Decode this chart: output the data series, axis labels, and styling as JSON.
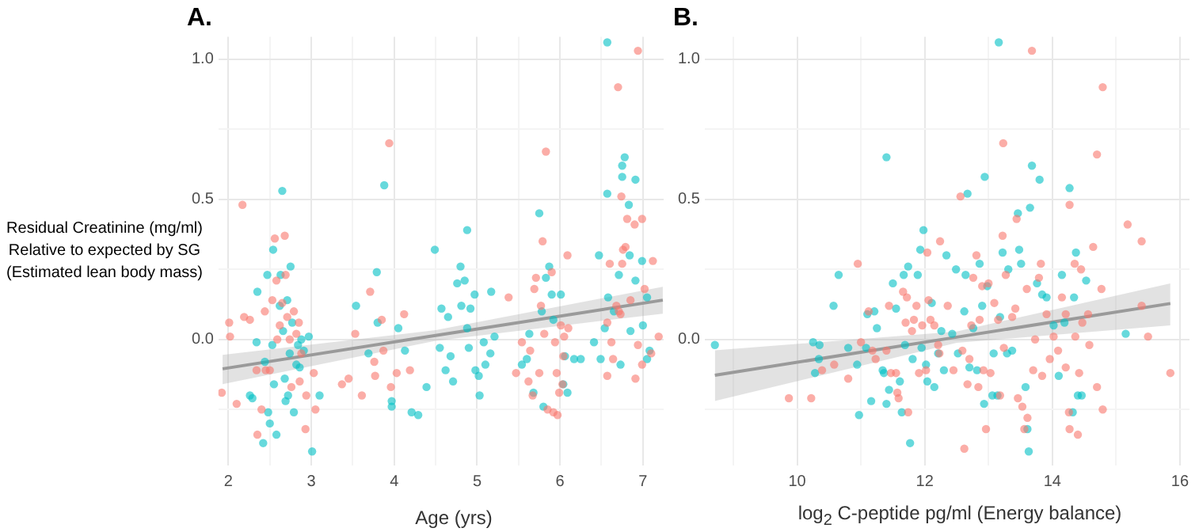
{
  "chart_data": [
    {
      "type": "scatter",
      "title": "A.",
      "xlabel": "Age (yrs)",
      "ylabel": "Residual Creatinine (mg/ml)\nRelative to expected by SG\n(Estimated lean body mass)",
      "xlim": [
        1.88,
        7.25
      ],
      "xticks": [
        2,
        {
          "value": 2.5,
          "label": null
        },
        3,
        {
          "value": 3.5,
          "label": null
        },
        4,
        {
          "value": 4.5,
          "label": null
        },
        5,
        {
          "value": 5.5,
          "label": null
        },
        6,
        {
          "value": 6.5,
          "label": null
        },
        7
      ],
      "ylim": [
        -0.45,
        1.08
      ],
      "yticks": [
        {
          "value": -0.25,
          "label": null
        },
        {
          "value": 0,
          "label": "0.0"
        },
        {
          "value": 0.25,
          "label": null
        },
        {
          "value": 0.5,
          "label": "0.5"
        },
        {
          "value": 0.75,
          "label": null
        },
        {
          "value": 1,
          "label": "1.0"
        }
      ],
      "grid": true,
      "series": [
        {
          "marker": "circle",
          "color": "#f8766d",
          "x": [
            1.92,
            2.01,
            2.02,
            2.1,
            2.17,
            2.19,
            2.26,
            2.34,
            2.35,
            2.4,
            2.44,
            2.45,
            2.5,
            2.53,
            2.56,
            2.58,
            2.59,
            2.62,
            2.65,
            2.68,
            2.69,
            2.71,
            2.74,
            2.76,
            2.79,
            2.82,
            2.85,
            2.86,
            2.88,
            2.93,
            2.94,
            3.03,
            3.05,
            3.37,
            3.45,
            3.53,
            3.61,
            3.71,
            3.76,
            3.77,
            3.85,
            3.87,
            3.94,
            3.96,
            4.03,
            4.12,
            4.19,
            5.38,
            5.47,
            5.54,
            5.62,
            5.64,
            5.67,
            5.69,
            5.71,
            5.75,
            5.77,
            5.79,
            5.81,
            5.83,
            5.85,
            5.9,
            5.92,
            5.94,
            5.96,
            5.97,
            5.99,
            6.01,
            6.03,
            6.04,
            6.05,
            6.09,
            6.1,
            6.94,
            6.7,
            6.74,
            6.81,
            6.9,
            6.99,
            6.79,
            6.76,
            6.6,
            6.75,
            7.12,
            7.02,
            6.85,
            6.68,
            6.73,
            6.57,
            6.62,
            6.64,
            6.94,
            6.99,
            7.1,
            6.57,
            6.91,
            7.19,
            6.71
          ],
          "values": [
            -0.19,
            0.06,
            0.01,
            -0.23,
            0.48,
            0.08,
            0.07,
            -0.11,
            -0.34,
            -0.25,
            0.1,
            -0.11,
            -0.11,
            0.14,
            0.36,
            0.21,
            0.0,
            0.05,
            0.13,
            0.37,
            0.23,
            0.08,
            0.0,
            -0.17,
            0.1,
            0.02,
            0.06,
            -0.15,
            -0.05,
            -0.32,
            -0.2,
            -0.12,
            -0.25,
            -0.16,
            -0.14,
            0.02,
            -0.2,
            0.17,
            -0.08,
            -0.13,
            0.07,
            -0.04,
            0.7,
            -0.17,
            -0.12,
            0.09,
            -0.11,
            0.15,
            -0.12,
            -0.01,
            -0.15,
            -0.04,
            -0.2,
            0.18,
            0.22,
            -0.12,
            0.12,
            0.35,
            0.02,
            0.67,
            -0.25,
            0.24,
            -0.26,
            -0.01,
            -0.12,
            -0.27,
            -0.19,
            0.05,
            -0.16,
            -0.06,
            0.01,
            0.3,
            0.04,
            1.03,
            0.9,
            0.51,
            0.43,
            0.41,
            0.43,
            0.33,
            0.32,
            0.27,
            0.27,
            0.28,
            0.18,
            0.14,
            0.12,
            0.09,
            0.06,
            -0.01,
            -0.07,
            -0.02,
            -0.09,
            -0.05,
            -0.13,
            -0.14,
            0.01,
            0.1
          ]
        },
        {
          "marker": "circle",
          "color": "#00bfc4",
          "x": [
            2.26,
            2.29,
            2.34,
            2.35,
            2.42,
            2.44,
            2.47,
            2.48,
            2.5,
            2.53,
            2.54,
            2.55,
            2.58,
            2.62,
            2.63,
            2.65,
            2.66,
            2.68,
            2.69,
            2.71,
            2.72,
            2.74,
            2.75,
            2.77,
            2.79,
            2.82,
            2.84,
            2.86,
            2.88,
            2.91,
            2.97,
            3.01,
            3.1,
            3.54,
            3.69,
            3.79,
            3.8,
            3.88,
            3.97,
            3.97,
            4.05,
            4.13,
            4.21,
            4.29,
            4.39,
            4.49,
            4.55,
            4.57,
            4.62,
            4.65,
            4.68,
            4.71,
            4.76,
            4.8,
            4.81,
            4.85,
            4.88,
            4.88,
            4.9,
            4.92,
            4.97,
            4.98,
            5.02,
            5.03,
            5.08,
            5.1,
            5.16,
            5.17,
            5.21,
            5.54,
            5.6,
            5.63,
            5.68,
            5.75,
            5.78,
            5.8,
            5.83,
            5.87,
            5.9,
            5.92,
            6.01,
            6.04,
            6.06,
            6.09,
            6.17,
            6.25,
            6.57,
            6.57,
            6.78,
            6.75,
            6.75,
            6.91,
            6.83,
            6.47,
            6.84,
            6.91,
            6.99,
            7.05,
            6.71,
            6.58,
            6.65,
            6.54,
            6.49,
            6.73,
            6.85,
            7.0,
            7.08,
            7.05,
            6.41
          ],
          "values": [
            -0.2,
            -0.21,
            -0.01,
            0.17,
            -0.37,
            -0.08,
            0.23,
            -0.26,
            -0.3,
            -0.02,
            0.32,
            -0.16,
            -0.34,
            0.12,
            0.23,
            0.53,
            0.03,
            -0.14,
            -0.22,
            0.14,
            -0.2,
            -0.05,
            0.26,
            0.06,
            -0.26,
            -0.09,
            -0.02,
            -0.1,
            0.0,
            -0.04,
            0.01,
            -0.4,
            -0.2,
            0.12,
            -0.05,
            0.24,
            0.06,
            0.55,
            -0.22,
            -0.24,
            0.04,
            -0.04,
            -0.26,
            -0.27,
            -0.17,
            0.32,
            -0.03,
            0.11,
            -0.11,
            0.08,
            -0.06,
            -0.15,
            0.2,
            0.26,
            0.12,
            0.21,
            0.39,
            0.04,
            -0.03,
            0.11,
            0.16,
            -0.11,
            -0.13,
            -0.2,
            -0.01,
            -0.09,
            -0.05,
            0.17,
            0.01,
            -0.09,
            -0.07,
            0.02,
            -0.19,
            0.45,
            0.1,
            -0.24,
            0.22,
            0.26,
            0.16,
            0.07,
            0.16,
            -0.16,
            -0.06,
            -0.19,
            -0.07,
            -0.07,
            1.06,
            0.52,
            0.65,
            0.62,
            0.58,
            0.57,
            0.48,
            0.3,
            0.3,
            0.21,
            0.28,
            0.15,
            0.23,
            0.15,
            0.1,
            0.04,
            -0.07,
            -0.09,
            0.03,
            0.05,
            -0.04,
            -0.07,
            -0.01
          ]
        },
        {
          "type": "line",
          "marker": "none",
          "color": "#999999",
          "x": [
            1.93,
            4.5,
            7.24
          ],
          "values": [
            -0.105,
            0.014,
            0.14
          ],
          "lower": [
            -0.16,
            -0.005,
            0.092
          ],
          "upper": [
            -0.055,
            0.033,
            0.188
          ]
        }
      ]
    },
    {
      "type": "scatter",
      "title": "B.",
      "xlabel": "log$_{2}$ C-peptide pg/ml (Energy balance)",
      "xlim": [
        8.55,
        16.15
      ],
      "xticks": [
        {
          "value": 9,
          "label": null
        },
        10,
        {
          "value": 11,
          "label": null
        },
        12,
        {
          "value": 13,
          "label": null
        },
        14,
        {
          "value": 15,
          "label": null
        },
        16
      ],
      "ylim": [
        -0.45,
        1.08
      ],
      "yticks": [
        {
          "value": -0.25,
          "label": null
        },
        {
          "value": 0,
          "label": "0.0"
        },
        {
          "value": 0.25,
          "label": null
        },
        {
          "value": 0.5,
          "label": "0.5"
        },
        {
          "value": 0.75,
          "label": null
        },
        {
          "value": 1,
          "label": "1.0"
        }
      ],
      "grid": true,
      "series": [
        {
          "marker": "circle",
          "color": "#f8766d",
          "x": [
            9.87,
            10.22,
            10.39,
            10.58,
            10.8,
            10.95,
            11.0,
            11.12,
            11.18,
            11.23,
            11.4,
            11.44,
            11.47,
            11.55,
            11.57,
            11.59,
            11.66,
            11.7,
            11.72,
            11.74,
            11.8,
            11.83,
            11.87,
            11.91,
            11.96,
            12.02,
            12.04,
            12.06,
            12.09,
            12.15,
            12.21,
            12.23,
            12.24,
            12.36,
            12.45,
            12.56,
            12.59,
            12.62,
            12.67,
            12.7,
            12.73,
            12.76,
            12.81,
            12.84,
            12.86,
            12.9,
            12.92,
            12.96,
            13.0,
            13.03,
            13.09,
            13.15,
            13.18,
            13.22,
            13.23,
            13.24,
            13.27,
            13.37,
            13.42,
            13.44,
            13.46,
            13.53,
            13.56,
            13.6,
            13.61,
            13.68,
            13.7,
            13.73,
            13.79,
            13.82,
            13.84,
            13.91,
            13.96,
            14.02,
            14.09,
            14.15,
            14.21,
            14.21,
            14.27,
            14.27,
            14.26,
            14.36,
            14.35,
            14.4,
            14.42,
            14.45,
            14.47,
            14.56,
            14.58,
            14.64,
            14.7,
            14.7,
            14.77,
            14.79,
            14.79,
            15.18,
            15.4,
            15.4,
            15.5,
            15.85
          ],
          "values": [
            -0.21,
            -0.21,
            -0.11,
            -0.09,
            -0.14,
            0.27,
            -0.01,
            0.1,
            -0.04,
            -0.07,
            -0.04,
            0.12,
            -0.12,
            -0.12,
            -0.19,
            -0.21,
            0.17,
            0.06,
            0.15,
            -0.26,
            0.03,
            0.07,
            0.12,
            -0.12,
            0.05,
            -0.11,
            0.31,
            0.14,
            0.07,
            0.05,
            -0.02,
            -0.05,
            0.35,
            0.12,
            -0.11,
            0.51,
            -0.04,
            -0.39,
            -0.16,
            -0.07,
            0.05,
            0.22,
            0.3,
            -0.17,
            0.07,
            0.19,
            -0.11,
            -0.32,
            0.2,
            -0.12,
            0.13,
            0.07,
            -0.2,
            0.37,
            0.7,
            -0.03,
            0.23,
            0.08,
            0.11,
            0.43,
            -0.21,
            -0.24,
            -0.32,
            0.18,
            -0.28,
            1.03,
            -0.11,
            0.0,
            0.22,
            0.27,
            -0.13,
            0.09,
            -0.07,
            0.01,
            -0.04,
            0.15,
            -0.1,
            0.09,
            0.48,
            -0.32,
            -0.26,
            0.01,
            0.27,
            -0.34,
            -0.12,
            0.25,
            0.06,
            0.09,
            -0.02,
            0.33,
            0.66,
            -0.17,
            0.18,
            -0.25,
            0.9,
            0.41,
            0.35,
            0.12,
            0.01,
            -0.12
          ]
        },
        {
          "marker": "circle",
          "color": "#00bfc4",
          "x": [
            8.71,
            10.25,
            10.35,
            10.28,
            10.34,
            10.57,
            10.65,
            10.8,
            10.94,
            10.97,
            11.08,
            11.1,
            11.16,
            11.21,
            11.25,
            11.34,
            11.36,
            11.4,
            11.4,
            11.44,
            11.5,
            11.55,
            11.61,
            11.64,
            11.67,
            11.69,
            11.74,
            11.77,
            11.81,
            11.89,
            11.93,
            11.95,
            11.98,
            12.02,
            12.04,
            12.11,
            12.15,
            12.21,
            12.26,
            12.3,
            12.34,
            12.43,
            12.49,
            12.52,
            12.62,
            12.64,
            12.67,
            12.7,
            12.76,
            12.82,
            12.86,
            12.9,
            12.93,
            12.94,
            12.98,
            13.06,
            13.08,
            13.14,
            13.16,
            13.18,
            13.22,
            13.29,
            13.31,
            13.37,
            13.46,
            13.48,
            13.51,
            13.58,
            13.61,
            13.63,
            13.65,
            13.68,
            13.76,
            13.8,
            13.84,
            13.91,
            14.02,
            14.1,
            14.15,
            14.19,
            14.27,
            14.32,
            14.34,
            14.37,
            14.4,
            14.46,
            14.53,
            15.15
          ],
          "values": [
            -0.02,
            -0.01,
            -0.02,
            -0.12,
            -0.07,
            0.12,
            0.23,
            -0.03,
            -0.09,
            -0.27,
            -0.03,
            0.09,
            -0.22,
            0.1,
            0.04,
            -0.11,
            -0.12,
            0.65,
            -0.23,
            -0.18,
            0.2,
            0.11,
            -0.15,
            -0.26,
            0.23,
            -0.02,
            0.26,
            -0.37,
            -0.07,
            0.23,
            0.32,
            -0.03,
            0.39,
            -0.09,
            -0.15,
            0.13,
            -0.17,
            -0.05,
            0.03,
            -0.11,
            0.3,
            0.02,
            0.25,
            -0.05,
            0.1,
            0.23,
            0.52,
            -0.1,
            0.04,
            -0.11,
            0.27,
            0.12,
            -0.23,
            0.58,
            0.19,
            -0.2,
            -0.05,
            -0.2,
            1.06,
            0.08,
            0.31,
            -0.05,
            0.25,
            -0.04,
            0.45,
            0.32,
            0.27,
            -0.17,
            -0.32,
            -0.4,
            0.47,
            0.62,
            0.2,
            0.57,
            0.16,
            0.15,
            0.05,
            -0.13,
            0.23,
            0.06,
            0.54,
            -0.26,
            0.15,
            0.31,
            -0.2,
            -0.2,
            0.21,
            0.02
          ]
        },
        {
          "type": "line",
          "marker": "none",
          "color": "#999999",
          "x": [
            8.71,
            12.5,
            15.85
          ],
          "values": [
            -0.128,
            0.008,
            0.128
          ],
          "lower": [
            -0.22,
            -0.012,
            0.05
          ],
          "upper": [
            -0.039,
            0.028,
            0.2
          ]
        }
      ]
    }
  ]
}
